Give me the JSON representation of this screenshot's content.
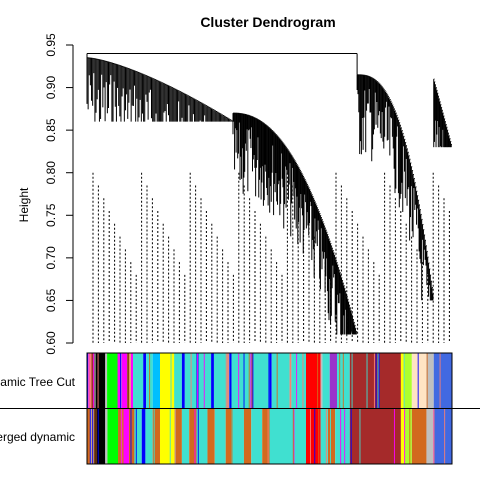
{
  "chart_data": {
    "type": "dendrogram",
    "title": "Cluster Dendrogram",
    "ylabel": "Height",
    "ylim": [
      0.6,
      0.95
    ],
    "y_ticks": [
      0.6,
      0.65,
      0.7,
      0.75,
      0.8,
      0.85,
      0.9,
      0.95
    ],
    "y_tick_labels": [
      "0.60",
      "0.65",
      "0.70",
      "0.75",
      "0.80",
      "0.85",
      "0.90",
      "0.95"
    ],
    "root_height": 0.94,
    "main_branches": [
      {
        "name": "left",
        "top": 0.94,
        "min_height": 0.61
      },
      {
        "name": "right",
        "top": 0.94,
        "min_height": 0.65
      }
    ],
    "leaf_cut_heights": [
      0.6
    ],
    "color_rows": [
      {
        "label": "Dynamic Tree Cut",
        "segments": [
          [
            "#bfbfbf",
            0.0,
            0.004
          ],
          [
            "#fa8072",
            0.004,
            0.012
          ],
          [
            "#a52a2a",
            0.012,
            0.018
          ],
          [
            "#7f7f7f",
            0.018,
            0.024
          ],
          [
            "#000000",
            0.024,
            0.05
          ],
          [
            "#bfbfbf",
            0.05,
            0.055
          ],
          [
            "#00ff00",
            0.055,
            0.086
          ],
          [
            "#ff00ff",
            0.086,
            0.11
          ],
          [
            "#8b4513",
            0.11,
            0.116
          ],
          [
            "#f4a460",
            0.116,
            0.12
          ],
          [
            "#ff00ff",
            0.12,
            0.126
          ],
          [
            "#40e0d0",
            0.126,
            0.154
          ],
          [
            "#0000ff",
            0.154,
            0.162
          ],
          [
            "#40e0d0",
            0.162,
            0.18
          ],
          [
            "#00bfff",
            0.18,
            0.2
          ],
          [
            "#ffff00",
            0.2,
            0.24
          ],
          [
            "#40e0d0",
            0.24,
            0.26
          ],
          [
            "#0000ff",
            0.26,
            0.268
          ],
          [
            "#40e0d0",
            0.268,
            0.3
          ],
          [
            "#0000ff",
            0.3,
            0.306
          ],
          [
            "#40e0d0",
            0.306,
            0.34
          ],
          [
            "#0000ff",
            0.34,
            0.346
          ],
          [
            "#40e0d0",
            0.346,
            0.39
          ],
          [
            "#0000ff",
            0.39,
            0.396
          ],
          [
            "#40e0d0",
            0.396,
            0.45
          ],
          [
            "#0000ff",
            0.45,
            0.456
          ],
          [
            "#40e0d0",
            0.456,
            0.5
          ],
          [
            "#0000ff",
            0.5,
            0.506
          ],
          [
            "#40e0d0",
            0.506,
            0.555
          ],
          [
            "#fa8072",
            0.555,
            0.56
          ],
          [
            "#40e0d0",
            0.56,
            0.6
          ],
          [
            "#ff0000",
            0.6,
            0.64
          ],
          [
            "#bfbfbf",
            0.64,
            0.645
          ],
          [
            "#40e0d0",
            0.645,
            0.665
          ],
          [
            "#9932cc",
            0.665,
            0.685
          ],
          [
            "#40e0d0",
            0.685,
            0.72
          ],
          [
            "#a52a2a",
            0.72,
            0.86
          ],
          [
            "#ffff00",
            0.86,
            0.87
          ],
          [
            "#adff2f",
            0.87,
            0.89
          ],
          [
            "#ffe4c4",
            0.89,
            0.93
          ],
          [
            "#bfbfbf",
            0.93,
            0.95
          ],
          [
            "#4169e1",
            0.95,
            1.0
          ]
        ]
      },
      {
        "label": "Merged dynamic",
        "segments": [
          [
            "#d2691e",
            0.0,
            0.01
          ],
          [
            "#bfbfbf",
            0.01,
            0.02
          ],
          [
            "#000000",
            0.02,
            0.05
          ],
          [
            "#bfbfbf",
            0.05,
            0.056
          ],
          [
            "#00ff00",
            0.056,
            0.085
          ],
          [
            "#d2691e",
            0.085,
            0.1
          ],
          [
            "#ff00ff",
            0.1,
            0.115
          ],
          [
            "#d2691e",
            0.115,
            0.13
          ],
          [
            "#40e0d0",
            0.13,
            0.15
          ],
          [
            "#0000ff",
            0.15,
            0.16
          ],
          [
            "#40e0d0",
            0.16,
            0.18
          ],
          [
            "#d2691e",
            0.18,
            0.2
          ],
          [
            "#ffff00",
            0.2,
            0.24
          ],
          [
            "#d2691e",
            0.24,
            0.26
          ],
          [
            "#40e0d0",
            0.26,
            0.28
          ],
          [
            "#d2691e",
            0.28,
            0.3
          ],
          [
            "#40e0d0",
            0.3,
            0.33
          ],
          [
            "#d2691e",
            0.33,
            0.35
          ],
          [
            "#40e0d0",
            0.35,
            0.38
          ],
          [
            "#d2691e",
            0.38,
            0.4
          ],
          [
            "#40e0d0",
            0.4,
            0.43
          ],
          [
            "#d2691e",
            0.43,
            0.45
          ],
          [
            "#40e0d0",
            0.45,
            0.48
          ],
          [
            "#d2691e",
            0.48,
            0.5
          ],
          [
            "#40e0d0",
            0.5,
            0.6
          ],
          [
            "#ff0000",
            0.6,
            0.64
          ],
          [
            "#40e0d0",
            0.64,
            0.66
          ],
          [
            "#d2691e",
            0.66,
            0.68
          ],
          [
            "#40e0d0",
            0.68,
            0.72
          ],
          [
            "#a52a2a",
            0.72,
            0.86
          ],
          [
            "#ffff00",
            0.86,
            0.87
          ],
          [
            "#adff2f",
            0.87,
            0.89
          ],
          [
            "#d2691e",
            0.89,
            0.93
          ],
          [
            "#bfbfbf",
            0.93,
            0.95
          ],
          [
            "#4169e1",
            0.95,
            1.0
          ]
        ]
      }
    ]
  },
  "labels": {
    "title": "Cluster Dendrogram",
    "ylabel": "Height",
    "row1": "Dynamic Tree Cut",
    "row2": "Merged dynamic"
  }
}
